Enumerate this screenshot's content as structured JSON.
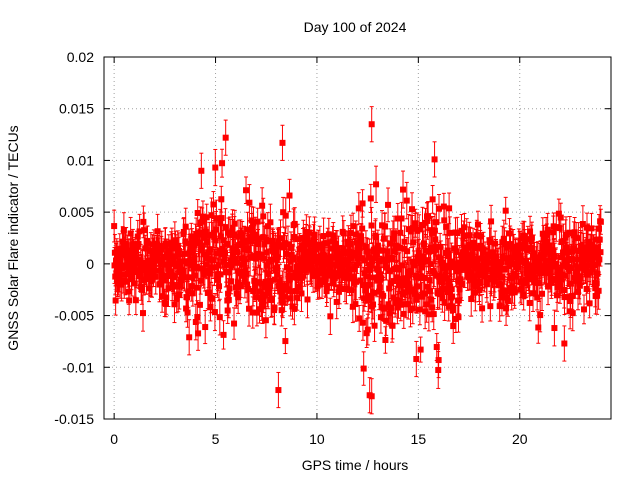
{
  "chart_data": {
    "type": "scatter",
    "title": "Day 100 of 2024",
    "xlabel": "GPS time / hours",
    "ylabel": "GNSS Solar Flare indicator / TECUs",
    "xlim": [
      -0.5,
      24.5
    ],
    "ylim": [
      -0.015,
      0.02
    ],
    "x_ticks": [
      0,
      5,
      10,
      15,
      20
    ],
    "x_tick_labels": [
      "0",
      "5",
      "10",
      "15",
      "20"
    ],
    "y_ticks": [
      -0.015,
      -0.01,
      -0.005,
      0,
      0.005,
      0.01,
      0.015,
      0.02
    ],
    "y_tick_labels": [
      "-0.015",
      "-0.01",
      "-0.005",
      "0",
      "0.005",
      "0.01",
      "0.015",
      "0.02"
    ],
    "grid": true,
    "series": [
      {
        "color": "#ff0000",
        "marker": "square",
        "error_bars": true,
        "notable_points": [
          {
            "x": 5.5,
            "y": 0.0122
          },
          {
            "x": 8.3,
            "y": 0.0117
          },
          {
            "x": 12.7,
            "y": 0.0135
          },
          {
            "x": 8.1,
            "y": -0.0122
          },
          {
            "x": 12.7,
            "y": -0.0128
          },
          {
            "x": 12.6,
            "y": -0.0127
          },
          {
            "x": 22.2,
            "y": -0.0077
          },
          {
            "x": 3.7,
            "y": -0.0071
          },
          {
            "x": 15.8,
            "y": 0.0101
          },
          {
            "x": 4.3,
            "y": 0.009
          },
          {
            "x": 14.9,
            "y": -0.0092
          },
          {
            "x": 16.0,
            "y": -0.0093
          }
        ]
      }
    ]
  }
}
